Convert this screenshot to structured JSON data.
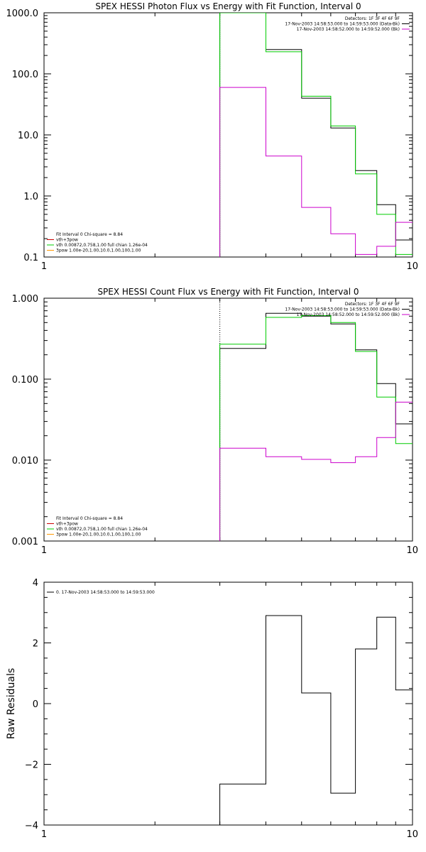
{
  "chart_data": [
    {
      "type": "line",
      "title": "SPEX HESSI Photon Flux vs Energy with Fit Function, Interval 0",
      "xscale": "log",
      "yscale": "log",
      "xlim": [
        1,
        10
      ],
      "ylim": [
        0.1,
        1000
      ],
      "xticks": [
        {
          "v": 1,
          "label": "1"
        },
        {
          "v": 10,
          "label": "10"
        }
      ],
      "yticks": [
        {
          "v": 0.1,
          "label": "0.1"
        },
        {
          "v": 1,
          "label": "1.0"
        },
        {
          "v": 10,
          "label": "10.0"
        },
        {
          "v": 100,
          "label": "100.0"
        },
        {
          "v": 1000,
          "label": "1000.0"
        }
      ],
      "vline": {
        "x": 3,
        "color": "#00bb00",
        "style": "dotted"
      },
      "edges": [
        3,
        4,
        5,
        6,
        7,
        8,
        9,
        10
      ],
      "series": [
        {
          "name": "17-Nov-2003 14:58:53.000 to 14:59:53.000 (Data-Bk)",
          "color": "#000000",
          "values": [
            1000,
            250,
            40,
            13,
            2.6,
            0.72,
            0.19
          ]
        },
        {
          "name": "vth",
          "color": "#00cc00",
          "values": [
            1000,
            230,
            43,
            14,
            2.3,
            0.5,
            0.11
          ]
        },
        {
          "name": "17-Nov-2003 14:58:52.000 to 14:59:52.000 (Bk)",
          "color": "#cc00cc",
          "values": [
            60,
            4.5,
            0.65,
            0.24,
            0.11,
            0.15,
            0.37
          ]
        }
      ],
      "legend_tr": [
        {
          "text": "Detectors: 1F 3F 4F 6F 9F",
          "color": ""
        },
        {
          "text": "17-Nov-2003 14:58:53.000 to 14:59:53.000 (Data-Bk)",
          "color": "#000000"
        },
        {
          "text": "17-Nov-2003 14:58:52.000 to 14:59:52.000 (Bk)",
          "color": "#cc00cc"
        }
      ],
      "legend_bl": [
        {
          "text": "Fit Interval 0   Chi-square = 8.84",
          "color": ""
        },
        {
          "text": "vth+3pow",
          "color": "#cc0000"
        },
        {
          "text": "vth 0.00872,0.758,1.00  full chian 1.26e-04",
          "color": "#00cc00"
        },
        {
          "text": "3pow 1.00e-20,1.00,10.0,1.00,100,1.00",
          "color": "#ff9900"
        }
      ]
    },
    {
      "type": "line",
      "title": "SPEX HESSI Count Flux vs Energy with Fit Function, Interval 0",
      "xscale": "log",
      "yscale": "log",
      "xlim": [
        1,
        10
      ],
      "ylim": [
        0.001,
        1
      ],
      "xticks": [
        {
          "v": 1,
          "label": "1"
        },
        {
          "v": 10,
          "label": "10"
        }
      ],
      "yticks": [
        {
          "v": 0.001,
          "label": "0.001"
        },
        {
          "v": 0.01,
          "label": "0.010"
        },
        {
          "v": 0.1,
          "label": "0.100"
        },
        {
          "v": 1,
          "label": "1.000"
        }
      ],
      "vline": {
        "x": 3,
        "color": "#000000",
        "style": "dotted"
      },
      "edges": [
        3,
        4,
        5,
        6,
        7,
        8,
        9,
        10
      ],
      "series": [
        {
          "name": "17-Nov-2003 14:58:53.000 to 14:59:53.000 (Data-Bk)",
          "color": "#000000",
          "values": [
            0.24,
            0.65,
            0.6,
            0.48,
            0.23,
            0.088,
            0.028
          ]
        },
        {
          "name": "vth",
          "color": "#00cc00",
          "values": [
            0.27,
            0.58,
            0.61,
            0.5,
            0.22,
            0.06,
            0.016
          ]
        },
        {
          "name": "17-Nov-2003 14:58:52.000 to 14:59:52.000 (Bk)",
          "color": "#cc00cc",
          "values": [
            0.014,
            0.011,
            0.0102,
            0.0093,
            0.011,
            0.019,
            0.052
          ]
        }
      ],
      "legend_tr": [
        {
          "text": "Detectors: 1F 3F 4F 6F 9F",
          "color": ""
        },
        {
          "text": "17-Nov-2003 14:58:53.000 to 14:59:53.000 (Data-Bk)",
          "color": "#000000"
        },
        {
          "text": "17-Nov-2003 14:58:52.000 to 14:59:52.000 (Bk)",
          "color": "#cc00cc"
        }
      ],
      "legend_bl": [
        {
          "text": "Fit Interval 0   Chi-square = 8.84",
          "color": ""
        },
        {
          "text": "vth+3pow",
          "color": "#cc0000"
        },
        {
          "text": "vth 0.00872,0.758,1.00  full chian 1.26e-04",
          "color": "#00cc00"
        },
        {
          "text": "3pow 1.00e-20,1.00,10.0,1.00,100,1.00",
          "color": "#ff9900"
        }
      ]
    },
    {
      "type": "line",
      "title": "",
      "ylabel": "Raw Residuals",
      "xscale": "log",
      "yscale": "linear",
      "xlim": [
        1,
        10
      ],
      "ylim": [
        -4,
        4
      ],
      "xticks": [
        {
          "v": 1,
          "label": "1"
        },
        {
          "v": 10,
          "label": "10"
        }
      ],
      "yticks": [
        {
          "v": -4,
          "label": "−4"
        },
        {
          "v": -2,
          "label": "−2"
        },
        {
          "v": 0,
          "label": "0"
        },
        {
          "v": 2,
          "label": "2"
        },
        {
          "v": 4,
          "label": "4"
        }
      ],
      "edges": [
        3,
        4,
        5,
        6,
        7,
        8,
        9,
        10
      ],
      "series": [
        {
          "name": "0. 17-Nov-2003 14:58:53.000 to 14:59:53.000",
          "color": "#000000",
          "values": [
            -2.65,
            2.9,
            0.35,
            -2.95,
            1.8,
            2.85,
            0.45
          ]
        }
      ],
      "legend_tl": [
        {
          "text": "0. 17-Nov-2003 14:58:53.000 to 14:59:53.000",
          "color": "#000000"
        }
      ]
    }
  ]
}
